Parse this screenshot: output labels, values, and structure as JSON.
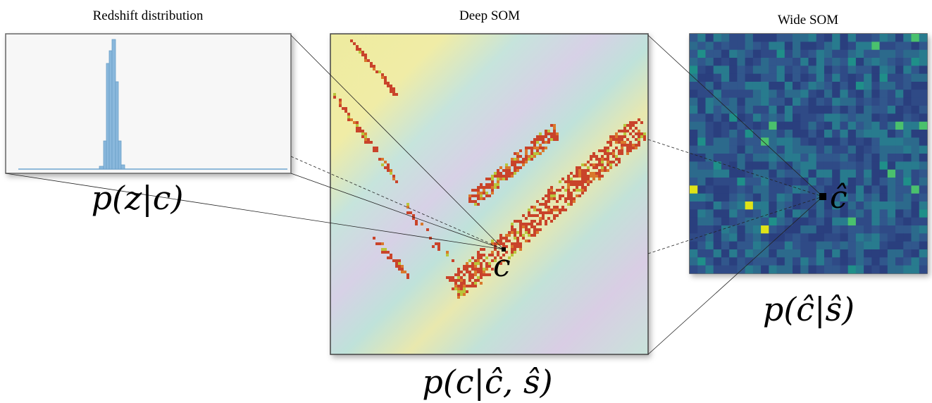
{
  "panels": {
    "redshift": {
      "title": "Redshift distribution",
      "label": "p(z|c)"
    },
    "deep": {
      "title": "Deep SOM",
      "cell": "c",
      "label": "p(c|ĉ, ŝ)"
    },
    "wide": {
      "title": "Wide SOM",
      "cell": "ĉ",
      "label": "p(ĉ|ŝ)"
    }
  }
}
